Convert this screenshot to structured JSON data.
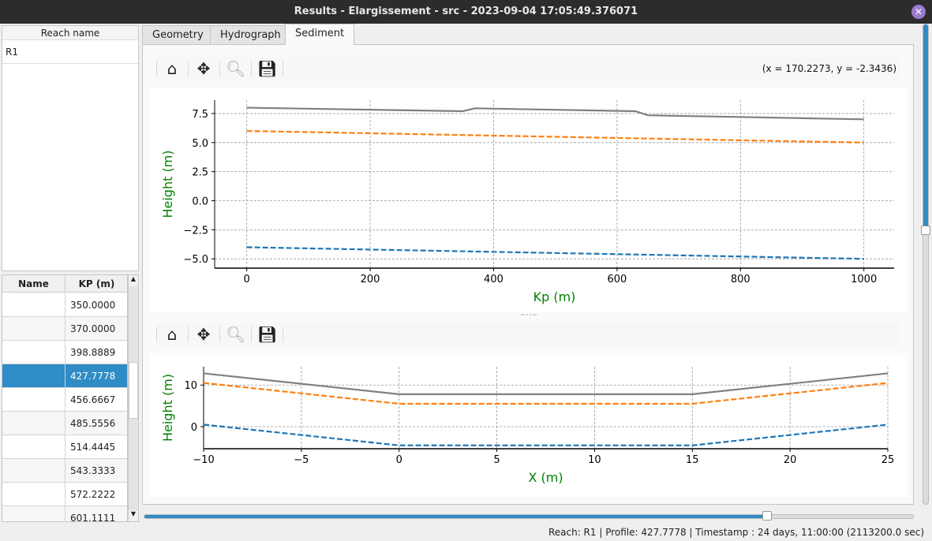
{
  "window": {
    "title": "Results - Elargissement - src - 2023-09-04 17:05:49.376071",
    "close_icon": "close-icon"
  },
  "reach_list": {
    "header": "Reach name",
    "items": [
      "R1"
    ]
  },
  "profile_table": {
    "columns": [
      "Name",
      "KP (m)"
    ],
    "rows": [
      {
        "name": "",
        "kp": "350.0000"
      },
      {
        "name": "",
        "kp": "370.0000"
      },
      {
        "name": "",
        "kp": "398.8889"
      },
      {
        "name": "",
        "kp": "427.7778",
        "selected": true
      },
      {
        "name": "",
        "kp": "456.6667"
      },
      {
        "name": "",
        "kp": "485.5556"
      },
      {
        "name": "",
        "kp": "514.4445"
      },
      {
        "name": "",
        "kp": "543.3333"
      },
      {
        "name": "",
        "kp": "572.2222"
      },
      {
        "name": "",
        "kp": "601.1111"
      }
    ]
  },
  "tabs": [
    {
      "label": "Geometry"
    },
    {
      "label": "Hydrograph"
    },
    {
      "label": "Sediment",
      "active": true
    }
  ],
  "toolbar": {
    "icons": [
      "home-icon",
      "move-icon",
      "zoom-icon",
      "save-icon"
    ],
    "coords": "(x = 170.2273,   y = -2.3436)"
  },
  "colors": {
    "accent": "#308cc6",
    "gray_series": "#808080",
    "orange_series": "#ff7f0e",
    "blue_series": "#1f77b4",
    "label": "#008000"
  },
  "chart_data": [
    {
      "type": "line",
      "xlabel": "Kp (m)",
      "ylabel": "Height (m)",
      "xlim": [
        -52,
        1049
      ],
      "ylim": [
        -5.8,
        8.65
      ],
      "grid": true,
      "xticks": [
        "0",
        "200",
        "400",
        "600",
        "800",
        "1000"
      ],
      "xtick_values": [
        0,
        200,
        400,
        600,
        800,
        1000
      ],
      "yticks": [
        "7.5",
        "5.0",
        "2.5",
        "0.0",
        "−2.5",
        "−5.0"
      ],
      "ytick_values": [
        7.5,
        5,
        2.5,
        0,
        -2.5,
        -5
      ],
      "series": [
        {
          "color": "#808080",
          "style": "solid",
          "x": [
            0,
            350,
            370,
            630,
            650,
            1000
          ],
          "y": [
            8.0,
            7.7,
            7.95,
            7.7,
            7.35,
            7.0
          ]
        },
        {
          "color": "#ff7f0e",
          "style": "dashed",
          "x": [
            0,
            1000
          ],
          "y": [
            6.0,
            5.0
          ]
        },
        {
          "color": "#1f77b4",
          "style": "dashed",
          "x": [
            0,
            1000
          ],
          "y": [
            -4.0,
            -5.0
          ]
        }
      ]
    },
    {
      "type": "line",
      "xlabel": "X (m)",
      "ylabel": "Height (m)",
      "xlim": [
        -10,
        25
      ],
      "ylim": [
        -5.3,
        14.4
      ],
      "grid": true,
      "xticks": [
        "−10",
        "−5",
        "0",
        "5",
        "10",
        "15",
        "20",
        "25"
      ],
      "xtick_values": [
        -10,
        -5,
        0,
        5,
        10,
        15,
        20,
        25
      ],
      "yticks": [
        "10",
        "0"
      ],
      "ytick_values": [
        10,
        0
      ],
      "series": [
        {
          "color": "#808080",
          "style": "solid",
          "x": [
            -10,
            0,
            15,
            25
          ],
          "y": [
            12.8,
            7.8,
            7.8,
            12.8
          ]
        },
        {
          "color": "#ff7f0e",
          "style": "dashed",
          "x": [
            -10,
            0,
            15,
            25
          ],
          "y": [
            10.5,
            5.5,
            5.5,
            10.5
          ]
        },
        {
          "color": "#1f77b4",
          "style": "dashed",
          "x": [
            -10,
            0,
            15,
            25
          ],
          "y": [
            0.5,
            -4.5,
            -4.5,
            0.5
          ]
        }
      ]
    }
  ],
  "time_slider": {
    "value_percent": 81
  },
  "vertical_slider": {
    "value_percent": 43
  },
  "status": "Reach: R1 | Profile: 427.7778 | Timestamp : 24 days, 11:00:00 (2113200.0 sec)"
}
